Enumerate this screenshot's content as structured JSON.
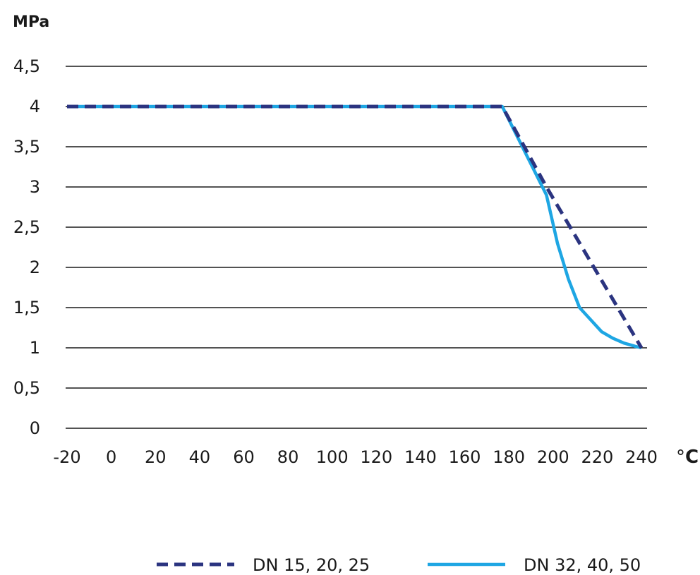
{
  "chart_data": {
    "type": "line",
    "title": "",
    "ylabel": "MPa",
    "xunit_degree": "°",
    "xunit_letter": "C",
    "xlim": [
      -20,
      240
    ],
    "ylim": [
      0,
      4.5
    ],
    "x_ticks": [
      "-20",
      "0",
      "20",
      "40",
      "60",
      "80",
      "100",
      "120",
      "140",
      "160",
      "180",
      "200",
      "220",
      "240"
    ],
    "y_ticks": [
      "0",
      "0,5",
      "1",
      "1,5",
      "2",
      "2,5",
      "3",
      "3,5",
      "4",
      "4,5"
    ],
    "grid": true,
    "legend_position": "bottom",
    "series": [
      {
        "name": "DN 15, 20, 25",
        "style": "dashed",
        "color": "#2b3480",
        "x": [
          -20,
          177,
          197,
          240
        ],
        "y": [
          4.0,
          4.0,
          3.0,
          1.0
        ]
      },
      {
        "name": "DN 32, 40, 50",
        "style": "solid",
        "color": "#1ea6e3",
        "x": [
          -20,
          177,
          197,
          202,
          207,
          212,
          217,
          222,
          227,
          232,
          237,
          240
        ],
        "y": [
          4.0,
          4.0,
          2.9,
          2.3,
          1.85,
          1.5,
          1.35,
          1.2,
          1.12,
          1.06,
          1.02,
          1.0
        ]
      }
    ]
  }
}
